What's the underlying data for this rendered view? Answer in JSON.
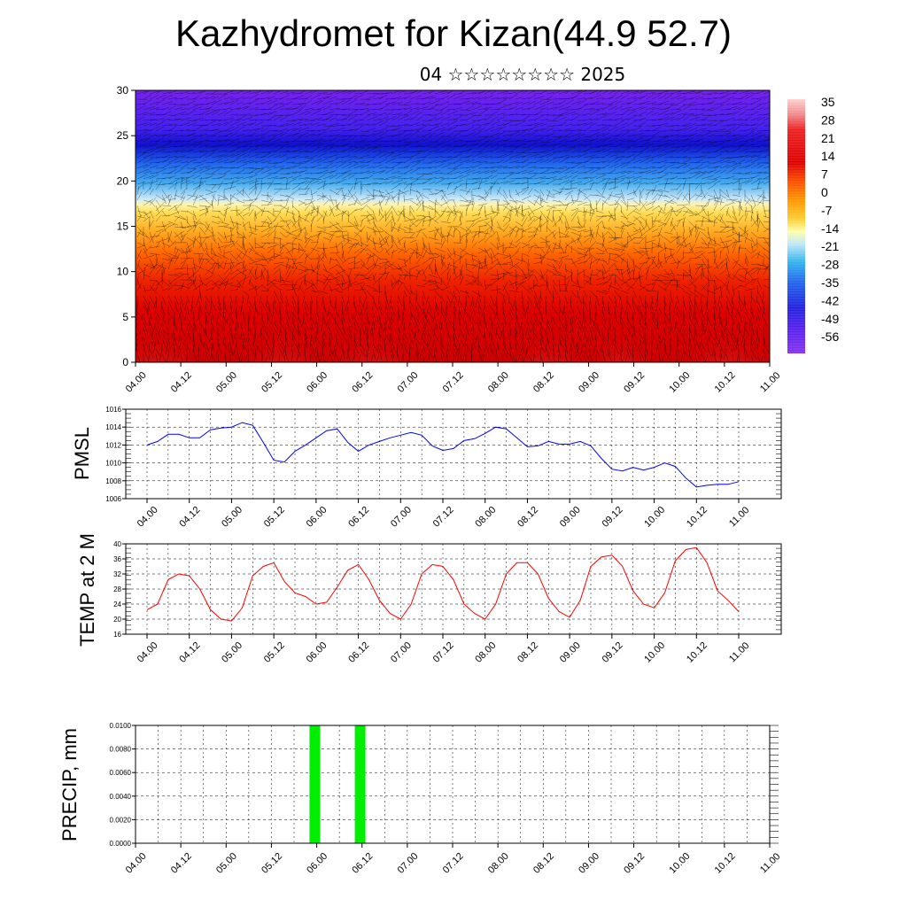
{
  "header": {
    "title": "Kazhydromet for Kizan(44.9 52.7)",
    "subtitle": "04 ☆☆☆☆☆☆☆☆ 2025"
  },
  "time_ticks": [
    "04.00",
    "04.12",
    "05.00",
    "05.12",
    "06.00",
    "06.12",
    "07.00",
    "07.12",
    "08.00",
    "08.12",
    "09.00",
    "09.12",
    "10.00",
    "10.12",
    "11.00"
  ],
  "colors": {
    "pmsl_line": "#0000ff",
    "temp_line": "#ff0000",
    "precip_bar": "#00ee00",
    "grid": "#000000"
  },
  "chart_data": [
    {
      "type": "heatmap",
      "name": "temperature-wind cross section",
      "xticks": [
        "04.00",
        "04.12",
        "05.00",
        "05.12",
        "06.00",
        "06.12",
        "07.00",
        "07.12",
        "08.00",
        "08.12",
        "09.00",
        "09.12",
        "10.00",
        "10.12",
        "11.00"
      ],
      "yticks": [
        "0",
        "5",
        "10",
        "15",
        "20",
        "25",
        "30"
      ],
      "ylim": [
        0,
        30
      ],
      "colorbar_labels": [
        "35",
        "28",
        "21",
        "14",
        "7",
        "0",
        "-7",
        "-14",
        "-21",
        "-28",
        "-35",
        "-42",
        "-49",
        "-56"
      ],
      "colorbar_range": [
        -63,
        42
      ],
      "value_profile": [
        [
          0,
          28
        ],
        [
          4,
          24
        ],
        [
          8,
          18
        ],
        [
          10,
          12
        ],
        [
          12,
          5
        ],
        [
          14,
          -3
        ],
        [
          16,
          -10
        ],
        [
          18,
          -22
        ],
        [
          20,
          -35
        ],
        [
          22,
          -45
        ],
        [
          24,
          -56
        ],
        [
          26,
          -58
        ],
        [
          30,
          -60
        ]
      ]
    },
    {
      "type": "line",
      "ylabel": "PMSL",
      "ylim": [
        1006,
        1016
      ],
      "yticks": [
        "1016",
        "1014",
        "1012",
        "1010",
        "1008",
        "1006"
      ],
      "xticks": [
        "04.00",
        "04.12",
        "05.00",
        "05.12",
        "06.00",
        "06.12",
        "07.00",
        "07.12",
        "08.00",
        "08.12",
        "09.00",
        "09.12",
        "10.00",
        "10.12",
        "11.00"
      ],
      "values": [
        1012.0,
        1012.4,
        1013.2,
        1013.2,
        1012.8,
        1012.8,
        1013.7,
        1013.9,
        1014.0,
        1014.5,
        1014.2,
        1012.3,
        1010.3,
        1010.1,
        1011.3,
        1012.0,
        1012.8,
        1013.6,
        1013.8,
        1012.3,
        1011.3,
        1012.0,
        1012.4,
        1012.8,
        1013.1,
        1013.4,
        1013.1,
        1011.9,
        1011.4,
        1011.6,
        1012.5,
        1012.7,
        1013.3,
        1014.0,
        1013.8,
        1012.8,
        1011.8,
        1011.9,
        1012.4,
        1012.1,
        1012.1,
        1012.4,
        1011.9,
        1010.5,
        1009.3,
        1009.1,
        1009.5,
        1009.2,
        1009.5,
        1010.0,
        1009.6,
        1008.3,
        1007.3,
        1007.5,
        1007.6,
        1007.6,
        1007.9
      ]
    },
    {
      "type": "line",
      "ylabel": "TEMP at 2 M",
      "ylim": [
        16,
        40
      ],
      "yticks": [
        "40",
        "36",
        "32",
        "28",
        "24",
        "20",
        "16"
      ],
      "xticks": [
        "04.00",
        "04.12",
        "05.00",
        "05.12",
        "06.00",
        "06.12",
        "07.00",
        "07.12",
        "08.00",
        "08.12",
        "09.00",
        "09.12",
        "10.00",
        "10.12",
        "11.00"
      ],
      "values": [
        22.5,
        24,
        30.5,
        32,
        31.5,
        28,
        22.5,
        20,
        19.5,
        23,
        31.5,
        34,
        35,
        30,
        27,
        26,
        24,
        24.5,
        28.5,
        33,
        34.5,
        30.5,
        25,
        21.5,
        20,
        24,
        32,
        34.5,
        34,
        30.5,
        24,
        21.5,
        20,
        24,
        32,
        35,
        35,
        32,
        25.5,
        22,
        20.5,
        25,
        34,
        36.5,
        37,
        34,
        27.5,
        24,
        23,
        27,
        35.5,
        38.5,
        39,
        35,
        27.5,
        25,
        22
      ]
    },
    {
      "type": "bar",
      "ylabel": "PRECIP, mm",
      "ylim": [
        0,
        0.01
      ],
      "yticks": [
        "0.0100",
        "0.0080",
        "0.0060",
        "0.0040",
        "0.0020",
        "0.0000"
      ],
      "xticks": [
        "04.00",
        "04.12",
        "05.00",
        "05.12",
        "06.00",
        "06.12",
        "07.00",
        "07.12",
        "08.00",
        "08.12",
        "09.00",
        "09.12",
        "10.00",
        "10.12",
        "11.00"
      ],
      "bars": [
        {
          "time_hours": 48,
          "value": 0.01
        },
        {
          "time_hours": 60,
          "value": 0.01
        }
      ]
    }
  ]
}
